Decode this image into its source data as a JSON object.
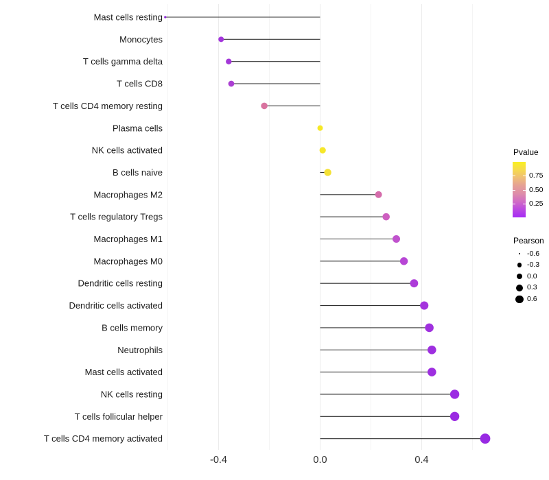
{
  "chart_data": {
    "type": "scatter",
    "variant": "lollipop",
    "title": "",
    "xlabel": "",
    "ylabel": "",
    "xlim": [
      -0.65,
      0.72
    ],
    "x_major_ticks": [
      -0.4,
      0.0,
      0.4
    ],
    "x_major_tick_labels": [
      "-0.4",
      "0.0",
      "0.4"
    ],
    "x_minor_ticks": [
      -0.6,
      -0.2,
      0.2,
      0.6
    ],
    "grid": true,
    "legend_position": "right",
    "baseline_x": 0.0,
    "rows": [
      {
        "label": "Mast cells resting",
        "pearson": -0.61,
        "pvalue": 0.01,
        "color": "#8c25d8",
        "radius": 1.6
      },
      {
        "label": "Monocytes",
        "pearson": -0.39,
        "pvalue": 0.09,
        "color": "#a335dc",
        "radius": 4.0
      },
      {
        "label": "T cells gamma delta",
        "pearson": -0.36,
        "pvalue": 0.1,
        "color": "#a338d8",
        "radius": 4.2
      },
      {
        "label": "T cells CD8",
        "pearson": -0.35,
        "pvalue": 0.12,
        "color": "#ab3fd2",
        "radius": 4.4
      },
      {
        "label": "T cells CD4 memory resting",
        "pearson": -0.22,
        "pvalue": 0.38,
        "color": "#d9739f",
        "radius": 4.8
      },
      {
        "label": "Plasma cells",
        "pearson": 0.0,
        "pvalue": 0.9,
        "color": "#f6e825",
        "radius": 4.0
      },
      {
        "label": "NK cells activated",
        "pearson": 0.01,
        "pvalue": 0.9,
        "color": "#f6e72a",
        "radius": 4.6
      },
      {
        "label": "B cells naive",
        "pearson": 0.03,
        "pvalue": 0.85,
        "color": "#f4e135",
        "radius": 5.2
      },
      {
        "label": "Macrophages M2",
        "pearson": 0.23,
        "pvalue": 0.33,
        "color": "#d56cab",
        "radius": 5.0
      },
      {
        "label": "T cells regulatory  Tregs",
        "pearson": 0.26,
        "pvalue": 0.24,
        "color": "#cd5fc0",
        "radius": 5.3
      },
      {
        "label": "Macrophages M1",
        "pearson": 0.3,
        "pvalue": 0.16,
        "color": "#c052cd",
        "radius": 5.5
      },
      {
        "label": "Macrophages M0",
        "pearson": 0.33,
        "pvalue": 0.12,
        "color": "#b746d5",
        "radius": 5.7
      },
      {
        "label": "Dendritic cells resting",
        "pearson": 0.37,
        "pvalue": 0.08,
        "color": "#ad3bd9",
        "radius": 5.9
      },
      {
        "label": "Dendritic cells activated",
        "pearson": 0.41,
        "pvalue": 0.05,
        "color": "#a434dd",
        "radius": 6.1
      },
      {
        "label": "B cells memory",
        "pearson": 0.43,
        "pvalue": 0.04,
        "color": "#a031df",
        "radius": 6.3
      },
      {
        "label": "Neutrophils",
        "pearson": 0.44,
        "pvalue": 0.04,
        "color": "#9e2fe0",
        "radius": 6.3
      },
      {
        "label": "Mast cells activated",
        "pearson": 0.44,
        "pvalue": 0.04,
        "color": "#9e2fe0",
        "radius": 6.3
      },
      {
        "label": "NK cells resting",
        "pearson": 0.53,
        "pvalue": 0.02,
        "color": "#9b2be2",
        "radius": 6.7
      },
      {
        "label": "T cells follicular helper",
        "pearson": 0.53,
        "pvalue": 0.02,
        "color": "#9a2ae2",
        "radius": 6.7
      },
      {
        "label": "T cells CD4 memory activated",
        "pearson": 0.65,
        "pvalue": 0.02,
        "color": "#982ae3",
        "radius": 7.4
      }
    ],
    "legends": {
      "pvalue": {
        "title": "Pvalue",
        "tick_labels": [
          "0.75",
          "0.50",
          "0.25"
        ],
        "tick_values": [
          0.75,
          0.5,
          0.25
        ],
        "range": [
          0,
          1
        ],
        "gradient_stops": [
          "#f9f021",
          "#f6da4d",
          "#efbe76",
          "#e5a095",
          "#de8da9",
          "#d16cc5",
          "#bb49e1",
          "#a52bf4"
        ]
      },
      "pearson": {
        "title": "Pearson",
        "dot_color": "#000000",
        "entries": [
          {
            "label": "-0.6",
            "radius": 1.3
          },
          {
            "label": "-0.3",
            "radius": 3.2
          },
          {
            "label": "0.0",
            "radius": 4.2
          },
          {
            "label": "0.3",
            "radius": 5.0
          },
          {
            "label": "0.6",
            "radius": 5.7
          }
        ]
      }
    },
    "colors": {
      "segment": "#303030",
      "grid_major": "#ececec",
      "grid_minor": "#f4f4f4",
      "axis_text": "#2f2f2f",
      "label_text": "#1b1b1b",
      "background": "#ffffff"
    }
  }
}
